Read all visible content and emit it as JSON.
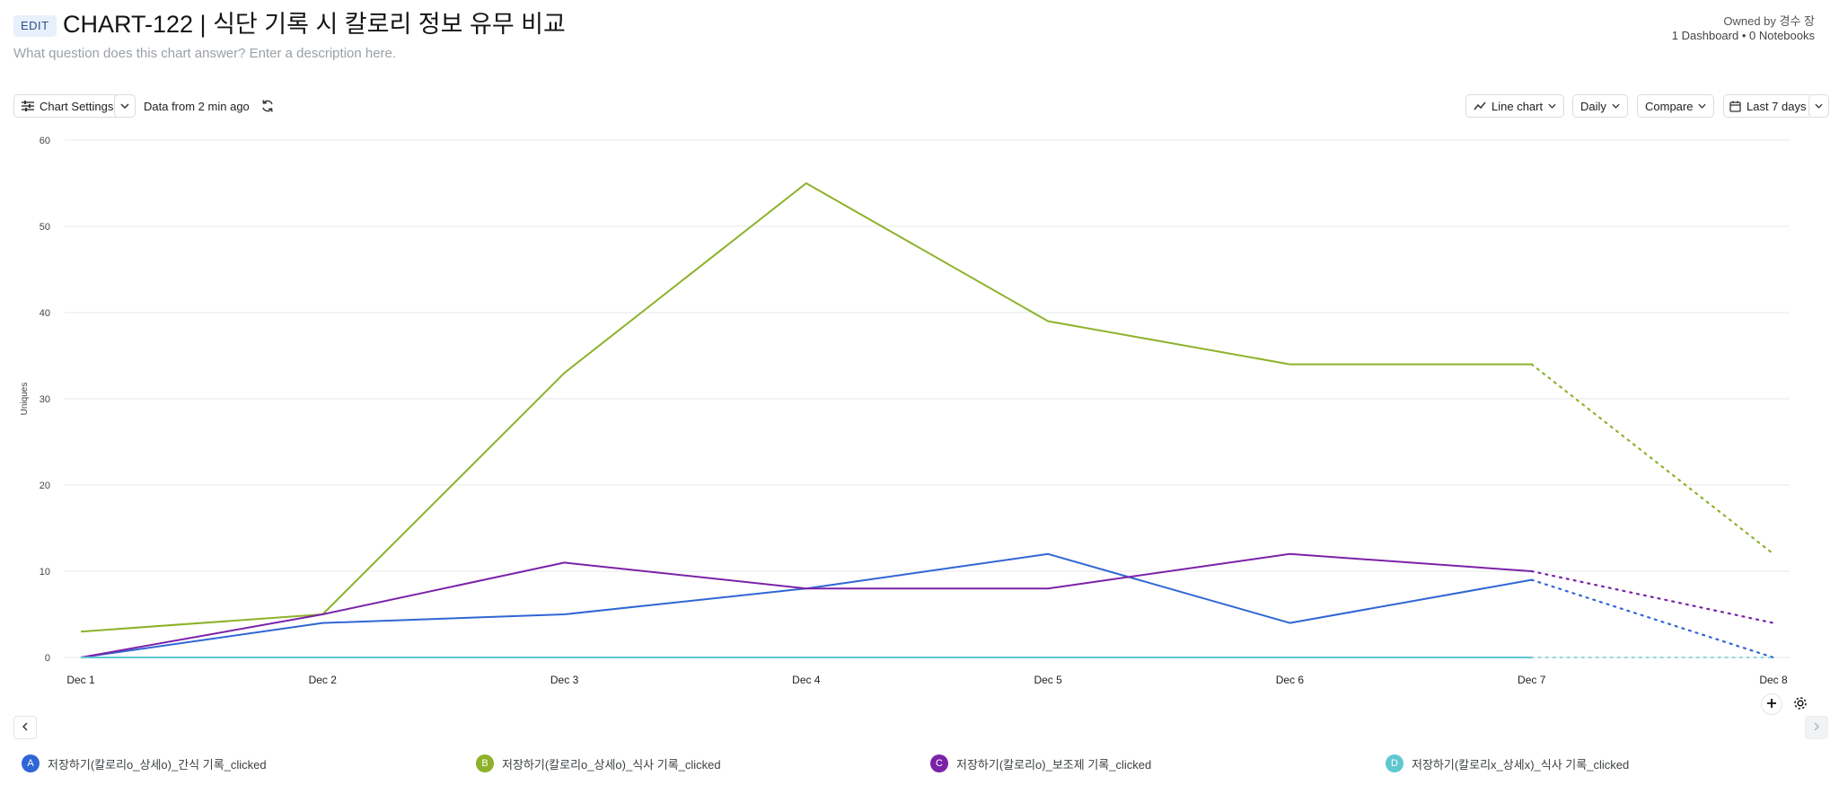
{
  "header": {
    "edit_label": "EDIT",
    "title": "CHART-122 | 식단 기록 시 칼로리 정보 유무 비교",
    "description_placeholder": "What question does this chart answer? Enter a description here.",
    "owner": "Owned by 경수 장",
    "usage": "1 Dashboard • 0 Notebooks"
  },
  "toolbar": {
    "chart_settings_label": "Chart Settings",
    "data_freshness": "Data from 2 min ago",
    "chart_type_label": "Line chart",
    "interval_label": "Daily",
    "compare_label": "Compare",
    "date_range_label": "Last 7 days"
  },
  "colors": {
    "A": "#2f66d4",
    "B": "#8db22a",
    "C": "#7b22a8",
    "D": "#5fc7cf",
    "grid": "#e6e8eb"
  },
  "chart_data": {
    "type": "line",
    "ylabel": "Uniques",
    "xlabel": "",
    "ylim": [
      0,
      60
    ],
    "yticks": [
      0,
      10,
      20,
      30,
      40,
      50,
      60
    ],
    "categories": [
      "Dec 1",
      "Dec 2",
      "Dec 3",
      "Dec 4",
      "Dec 5",
      "Dec 6",
      "Dec 7",
      "Dec 8"
    ],
    "incomplete_from_index": 6,
    "grid": true,
    "legend_position": "bottom",
    "series": [
      {
        "id": "A",
        "name": "저장하기(칼로리o_상세o)_간식 기록_clicked",
        "color": "#2f66d4",
        "values": [
          0,
          4,
          5,
          8,
          12,
          4,
          9,
          0
        ]
      },
      {
        "id": "B",
        "name": "저장하기(칼로리o_상세o)_식사 기록_clicked",
        "color": "#8db22a",
        "values": [
          3,
          5,
          33,
          55,
          39,
          34,
          34,
          12
        ]
      },
      {
        "id": "C",
        "name": "저장하기(칼로리o)_보조제 기록_clicked",
        "color": "#7b22a8",
        "values": [
          0,
          5,
          11,
          8,
          8,
          12,
          10,
          4
        ]
      },
      {
        "id": "D",
        "name": "저장하기(칼로리x_상세x)_식사 기록_clicked",
        "color": "#5fc7cf",
        "values": [
          0,
          0,
          0,
          0,
          0,
          0,
          0,
          0
        ]
      }
    ]
  }
}
